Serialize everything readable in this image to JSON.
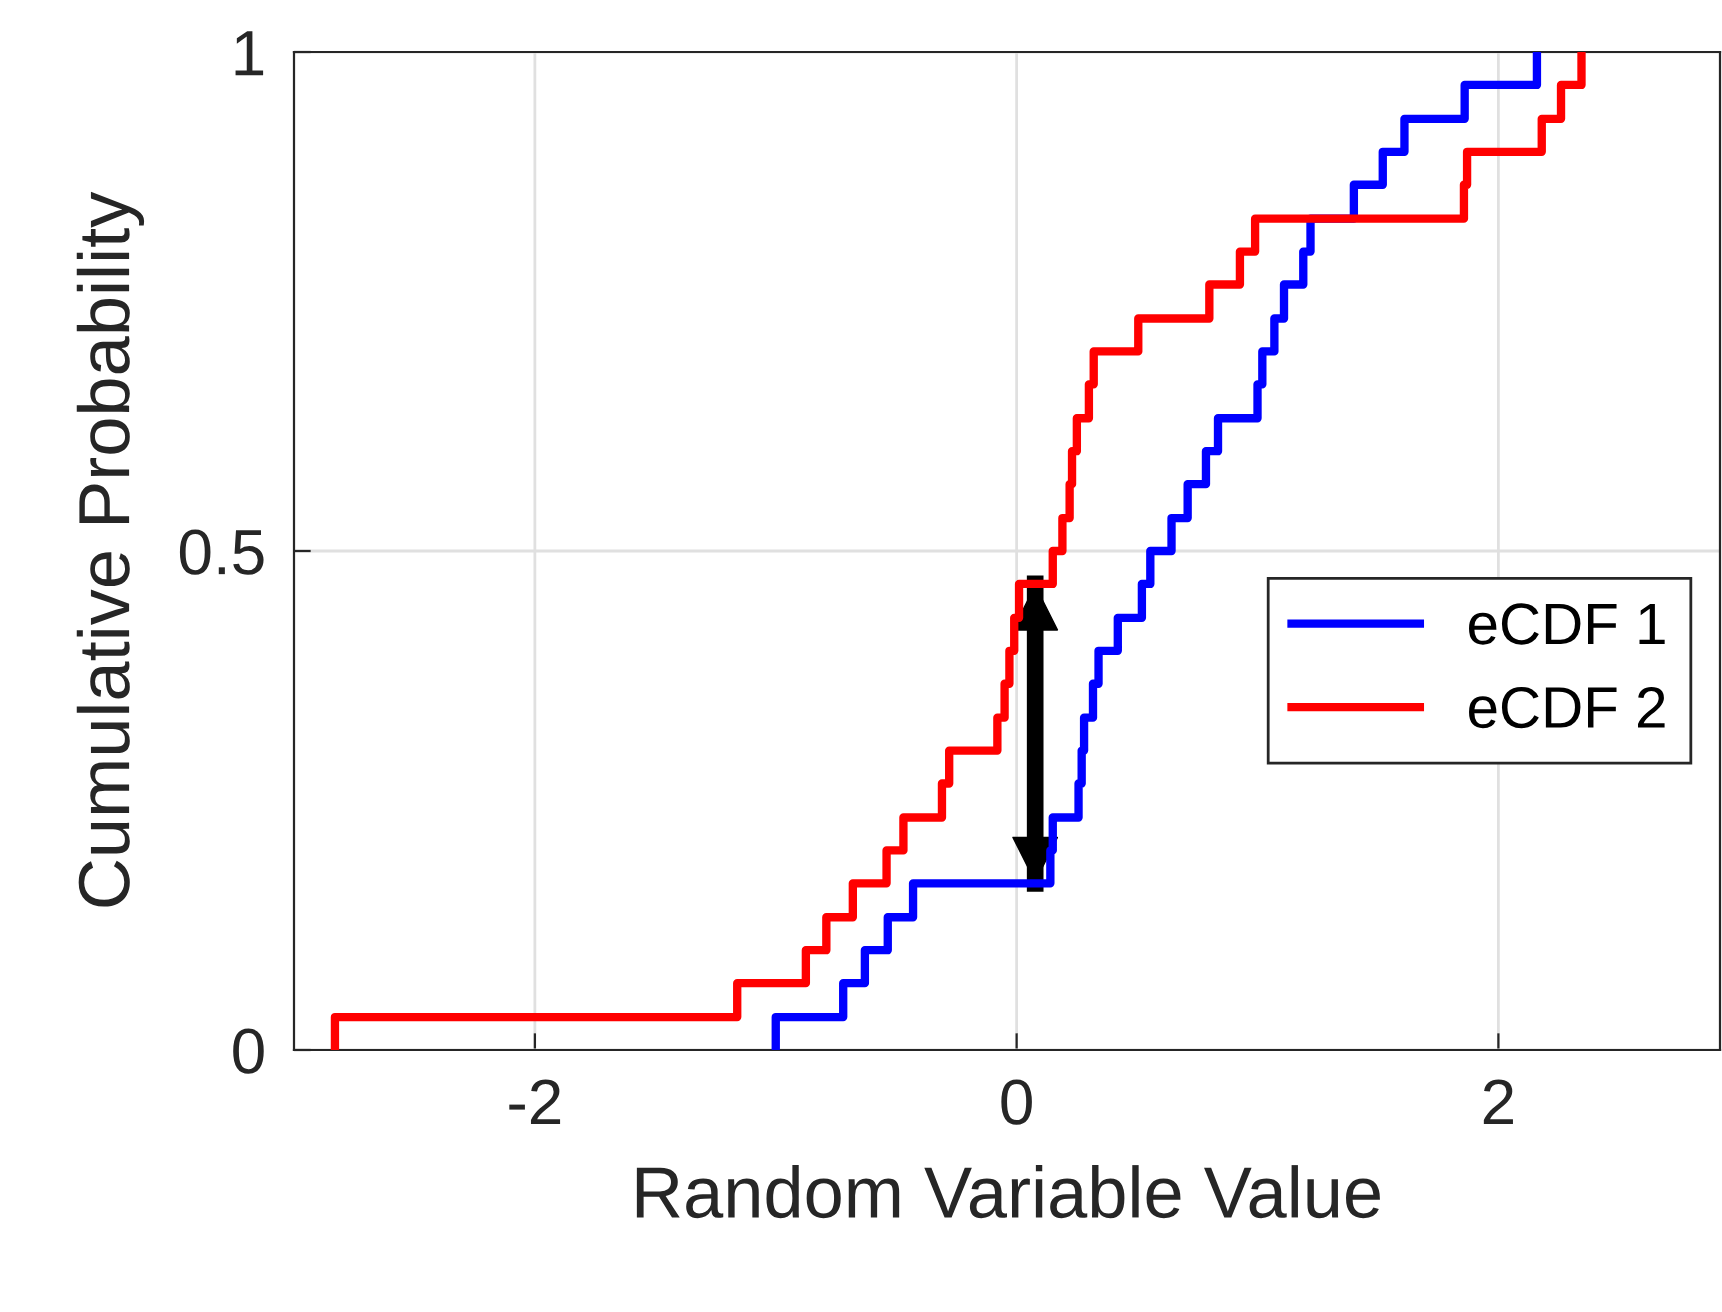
{
  "chart_data": {
    "type": "step",
    "xlabel": "Random Variable Value",
    "ylabel": "Cumulative Probability",
    "xlim": [
      -3,
      2.92
    ],
    "xticks": [
      -2,
      0,
      2
    ],
    "ylim": [
      0,
      1
    ],
    "yticks": [
      0,
      0.5,
      1
    ],
    "grid": true,
    "legend": "right",
    "series": [
      {
        "name": "eCDF 1",
        "color": "#0000ff",
        "x": [
          -1.0,
          -1.0,
          -0.72,
          -0.63,
          -0.535,
          -0.43,
          0.14,
          0.15,
          0.257,
          0.27,
          0.28,
          0.317,
          0.34,
          0.42,
          0.52,
          0.555,
          0.643,
          0.71,
          0.786,
          0.836,
          1.0,
          1.02,
          1.07,
          1.11,
          1.19,
          1.22,
          1.4,
          1.52,
          1.61,
          1.86,
          2.16
        ],
        "values": [
          0,
          0.033,
          0.067,
          0.1,
          0.133,
          0.167,
          0.2,
          0.233,
          0.267,
          0.3,
          0.333,
          0.367,
          0.4,
          0.433,
          0.467,
          0.5,
          0.533,
          0.567,
          0.6,
          0.633,
          0.667,
          0.7,
          0.733,
          0.767,
          0.8,
          0.833,
          0.867,
          0.9,
          0.933,
          0.967,
          1
        ]
      },
      {
        "name": "eCDF 2",
        "color": "#ff0000",
        "x": [
          -2.83,
          -2.83,
          -1.16,
          -0.875,
          -0.79,
          -0.68,
          -0.54,
          -0.47,
          -0.31,
          -0.28,
          -0.08,
          -0.05,
          -0.03,
          -0.01,
          0.01,
          0.15,
          0.19,
          0.22,
          0.23,
          0.25,
          0.3,
          0.32,
          0.505,
          0.8,
          0.927,
          0.99,
          1.857,
          1.87,
          2.18,
          2.26,
          2.345
        ],
        "values": [
          0,
          0.033,
          0.067,
          0.1,
          0.133,
          0.167,
          0.2,
          0.233,
          0.267,
          0.3,
          0.333,
          0.367,
          0.4,
          0.433,
          0.467,
          0.5,
          0.533,
          0.567,
          0.6,
          0.633,
          0.667,
          0.7,
          0.733,
          0.767,
          0.8,
          0.833,
          0.867,
          0.9,
          0.933,
          0.967,
          1
        ]
      },
      {
        "type": "line",
        "color": "#000000",
        "x": [
          0.077,
          0.077
        ],
        "values": [
          0.167,
          0.467
        ]
      }
    ]
  }
}
